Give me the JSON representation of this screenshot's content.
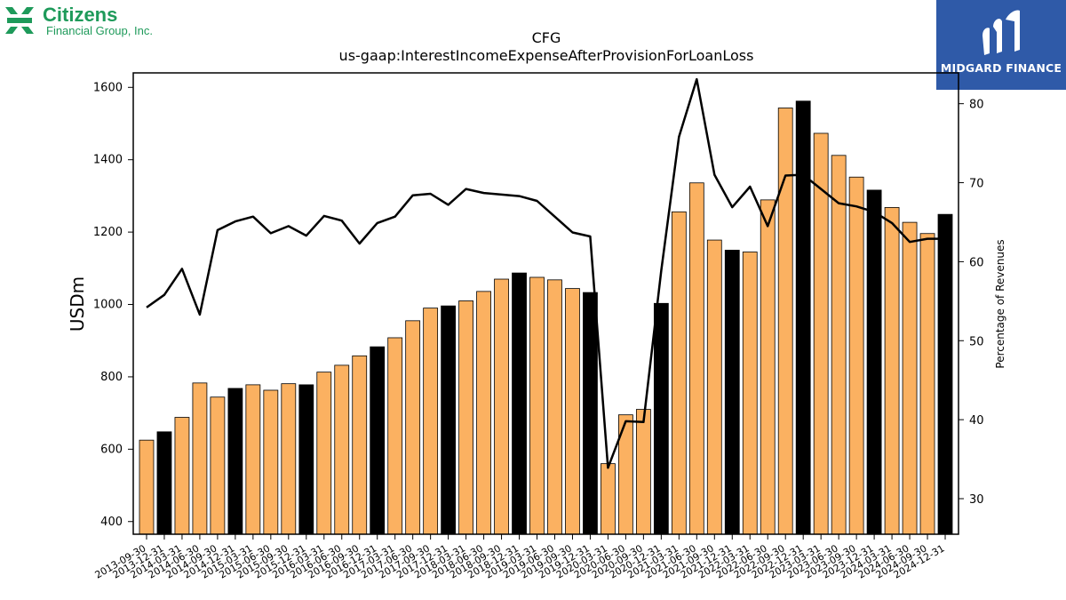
{
  "logos": {
    "left_brand": "Citizens",
    "left_sub": "Financial Group, Inc.",
    "right_brand": "MIDGARD FINANCE"
  },
  "colors": {
    "bar_default": "#fbb161",
    "bar_highlight": "#000000",
    "line": "#000000",
    "citizens_green": "#1e9a5a",
    "midgard_blue": "#2f5aa8"
  },
  "chart_data": {
    "type": "bar",
    "title": "CFG",
    "subtitle": "us-gaap:InterestIncomeExpenseAfterProvisionForLoanLoss",
    "ylabel": "USDm",
    "y2label": "Percentage of Revenues",
    "ylim": [
      365,
      1640
    ],
    "y2lim": [
      25.5,
      83.9
    ],
    "yticks": [
      400,
      600,
      800,
      1000,
      1200,
      1400,
      1600
    ],
    "y2ticks": [
      30,
      40,
      50,
      60,
      70,
      80
    ],
    "grid": false,
    "categories": [
      "2013-09-30",
      "2013-12-31",
      "2014-03-31",
      "2014-06-30",
      "2014-09-30",
      "2014-12-31",
      "2015-03-31",
      "2015-06-30",
      "2015-09-30",
      "2015-12-31",
      "2016-03-31",
      "2016-06-30",
      "2016-09-30",
      "2016-12-31",
      "2017-03-31",
      "2017-06-30",
      "2017-09-30",
      "2017-12-31",
      "2018-03-31",
      "2018-06-30",
      "2018-09-30",
      "2018-12-31",
      "2019-03-31",
      "2019-06-30",
      "2019-09-30",
      "2019-12-31",
      "2020-03-31",
      "2020-06-30",
      "2020-09-30",
      "2020-12-31",
      "2021-03-31",
      "2021-06-30",
      "2021-09-30",
      "2021-12-31",
      "2022-03-31",
      "2022-06-30",
      "2022-09-30",
      "2022-12-31",
      "2023-03-31",
      "2023-06-30",
      "2023-09-30",
      "2023-12-31",
      "2024-03-31",
      "2024-06-30",
      "2024-09-30",
      "2024-12-31"
    ],
    "series": [
      {
        "axis": "left",
        "kind": "bar",
        "values": [
          625,
          648,
          688,
          783,
          744,
          768,
          778,
          763,
          781,
          778,
          813,
          832,
          858,
          883,
          908,
          955,
          990,
          996,
          1010,
          1036,
          1070,
          1087,
          1075,
          1068,
          1044,
          1033,
          560,
          695,
          710,
          1003,
          1256,
          1336,
          1178,
          1150,
          1145,
          1289,
          1543,
          1562,
          1473,
          1412,
          1352,
          1316,
          1268,
          1227,
          1196,
          1249
        ],
        "highlight": [
          false,
          true,
          false,
          false,
          false,
          true,
          false,
          false,
          false,
          true,
          false,
          false,
          false,
          true,
          false,
          false,
          false,
          true,
          false,
          false,
          false,
          true,
          false,
          false,
          false,
          true,
          false,
          false,
          false,
          true,
          false,
          false,
          false,
          true,
          false,
          false,
          false,
          true,
          false,
          false,
          false,
          true,
          false,
          false,
          false,
          true
        ]
      },
      {
        "axis": "right",
        "kind": "line",
        "values": [
          54.2,
          55.8,
          59.1,
          53.3,
          64.0,
          65.1,
          65.7,
          63.6,
          64.5,
          63.3,
          65.8,
          65.2,
          62.3,
          64.9,
          65.7,
          68.4,
          68.6,
          67.2,
          69.2,
          68.7,
          68.5,
          68.3,
          67.7,
          65.7,
          63.7,
          63.2,
          33.9,
          39.8,
          39.7,
          58.9,
          75.8,
          83.1,
          71.0,
          66.9,
          69.5,
          64.5,
          70.9,
          71.0,
          69.2,
          67.4,
          67.0,
          66.3,
          64.9,
          62.5,
          62.9,
          62.9
        ]
      }
    ]
  }
}
